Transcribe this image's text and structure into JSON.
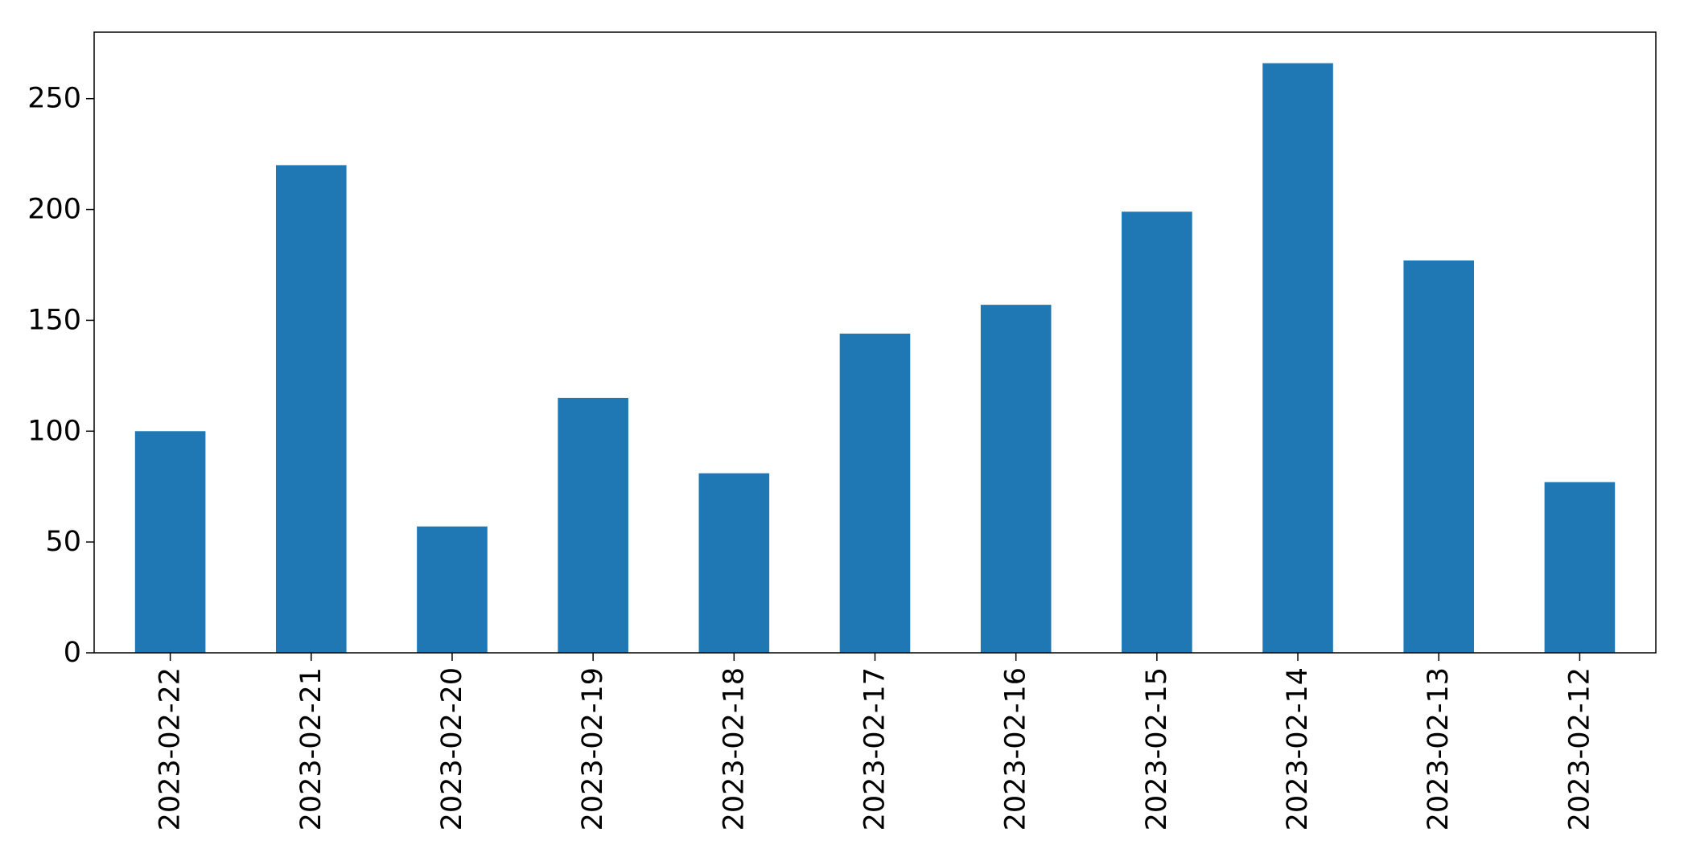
{
  "chart_data": {
    "type": "bar",
    "title": "",
    "xlabel": "",
    "ylabel": "",
    "categories": [
      "2023-02-22",
      "2023-02-21",
      "2023-02-20",
      "2023-02-19",
      "2023-02-18",
      "2023-02-17",
      "2023-02-16",
      "2023-02-15",
      "2023-02-14",
      "2023-02-13",
      "2023-02-12"
    ],
    "values": [
      100,
      220,
      57,
      115,
      81,
      144,
      157,
      199,
      266,
      177,
      77
    ],
    "ylim": [
      0,
      280
    ],
    "yticks": [
      0,
      50,
      100,
      150,
      200,
      250
    ],
    "grid": false,
    "legend": "none",
    "bar_color": "#1f77b4"
  }
}
